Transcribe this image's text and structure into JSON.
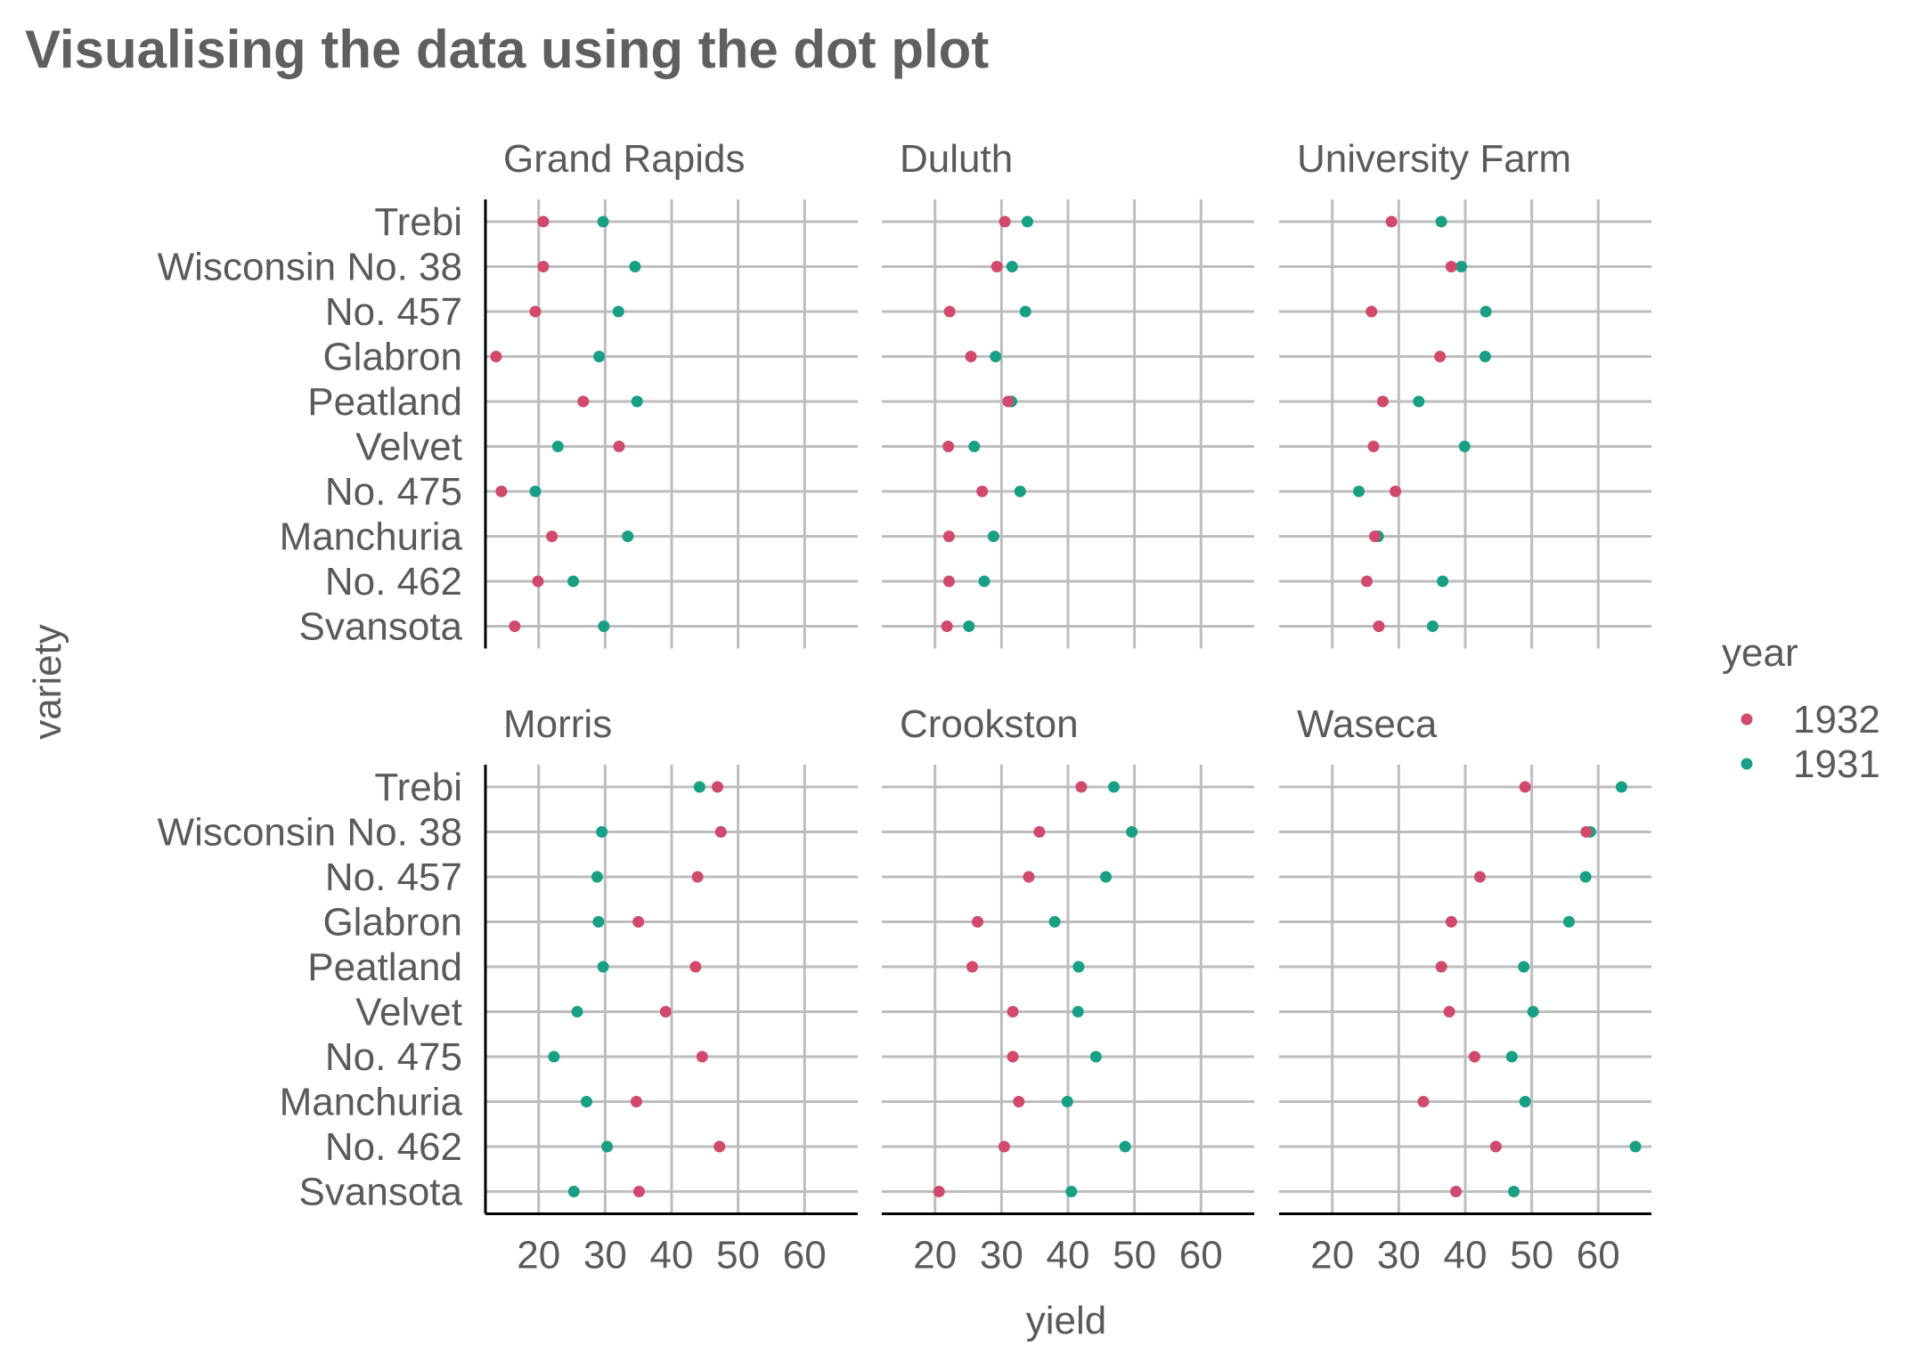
{
  "chart_data": {
    "type": "scatter",
    "title": "Visualising the data using the dot plot",
    "xlabel": "yield",
    "ylabel": "variety",
    "xlim": [
      12,
      68
    ],
    "xticks": [
      20,
      30,
      40,
      50,
      60
    ],
    "grid": true,
    "legend": {
      "title": "year",
      "position": "right",
      "entries": [
        "1932",
        "1931"
      ]
    },
    "colors": {
      "1932": "#d1496b",
      "1931": "#17a085",
      "grid": "#bdbdbd",
      "axis": "#000000"
    },
    "varieties": [
      "Trebi",
      "Wisconsin No. 38",
      "No. 457",
      "Glabron",
      "Peatland",
      "Velvet",
      "No. 475",
      "Manchuria",
      "No. 462",
      "Svansota"
    ],
    "sites": [
      {
        "name": "Grand Rapids",
        "y1932": [
          20.7,
          20.7,
          19.5,
          13.6,
          26.7,
          32.1,
          14.4,
          22.0,
          19.9,
          16.4
        ],
        "y1931": [
          29.7,
          34.5,
          32.0,
          29.1,
          34.8,
          22.9,
          19.5,
          33.4,
          25.2,
          29.8
        ]
      },
      {
        "name": "Duluth",
        "y1932": [
          30.5,
          29.3,
          22.2,
          25.4,
          31.0,
          22.0,
          27.1,
          22.1,
          22.1,
          21.8
        ],
        "y1931": [
          33.9,
          31.6,
          33.6,
          29.1,
          31.5,
          25.9,
          32.8,
          28.8,
          27.4,
          25.1
        ]
      },
      {
        "name": "University Farm",
        "y1932": [
          28.9,
          37.9,
          25.9,
          36.2,
          27.6,
          26.2,
          29.5,
          26.4,
          25.2,
          27.0
        ],
        "y1931": [
          36.4,
          39.4,
          43.1,
          43.0,
          33.0,
          39.9,
          24.0,
          26.9,
          36.6,
          35.1
        ]
      },
      {
        "name": "Morris",
        "y1932": [
          46.9,
          47.4,
          43.9,
          35.0,
          43.6,
          39.1,
          44.6,
          34.7,
          47.2,
          35.1
        ],
        "y1931": [
          44.2,
          29.5,
          28.8,
          29.0,
          29.7,
          25.8,
          22.3,
          27.2,
          30.3,
          25.3
        ]
      },
      {
        "name": "Crookston",
        "y1932": [
          42.0,
          35.7,
          34.1,
          26.4,
          25.6,
          31.7,
          31.7,
          32.6,
          30.4,
          20.6
        ],
        "y1931": [
          46.9,
          49.6,
          45.7,
          38.0,
          41.6,
          41.5,
          44.2,
          39.9,
          48.6,
          40.5
        ]
      },
      {
        "name": "Waseca",
        "y1932": [
          49.0,
          58.2,
          42.2,
          37.9,
          36.4,
          37.6,
          41.4,
          33.7,
          44.6,
          38.6
        ],
        "y1931": [
          63.5,
          58.8,
          58.1,
          55.6,
          48.8,
          50.2,
          47.0,
          49.0,
          65.6,
          47.3
        ]
      }
    ]
  }
}
